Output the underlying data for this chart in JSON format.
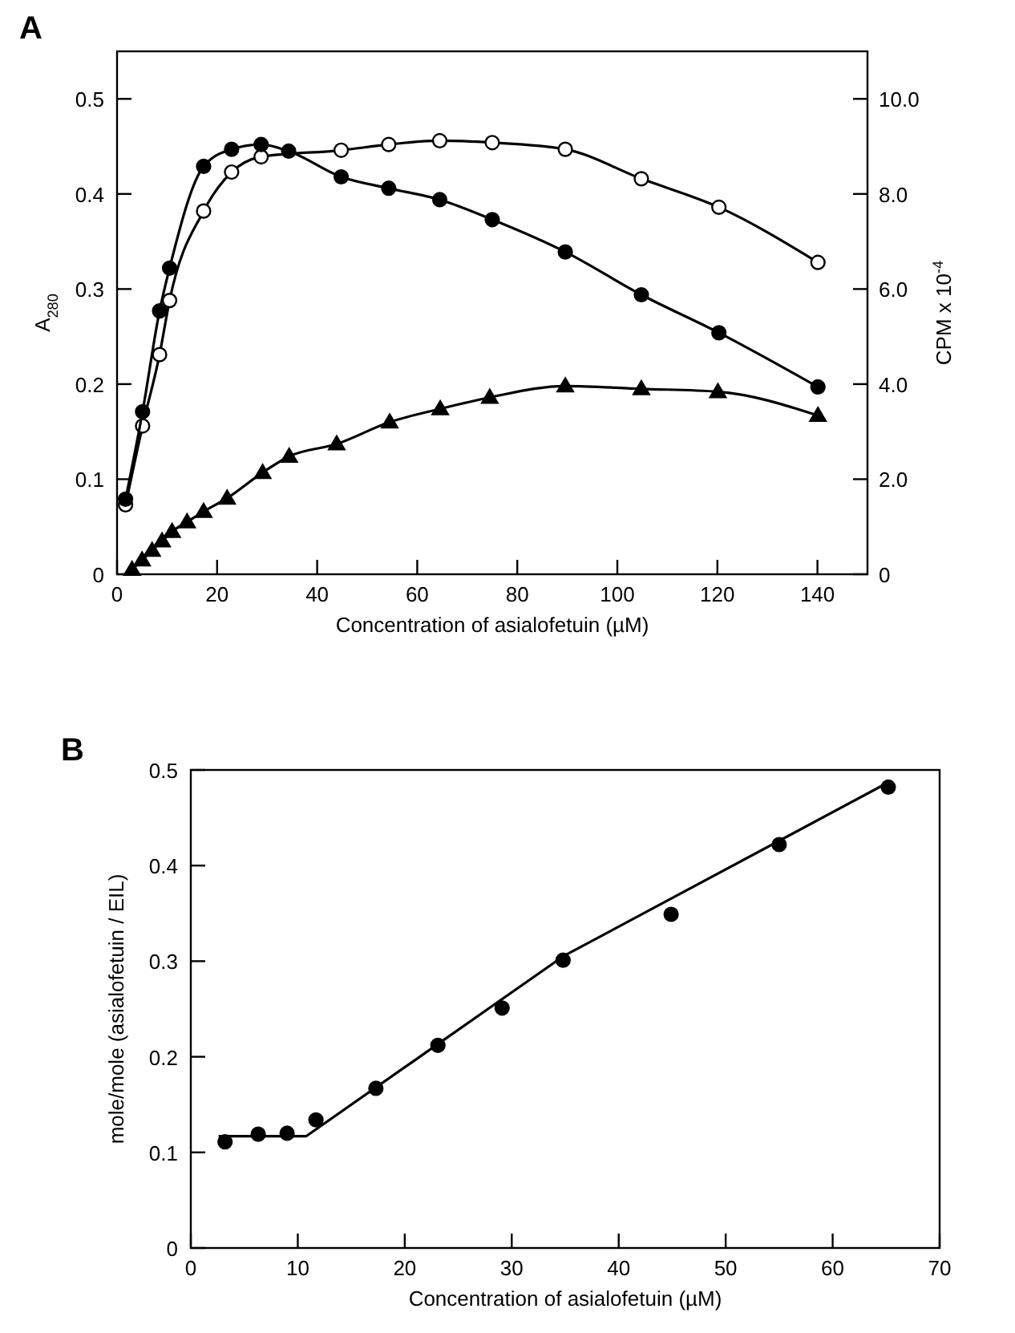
{
  "chart_data": [
    {
      "type": "line",
      "title": "A",
      "xlabel": "Concentration of asialofetuin (µM)",
      "ylabel": "A$_{280}$",
      "y2label": "CPM x 10$^{-4}$",
      "xlim": [
        0,
        150
      ],
      "xticks": [
        0,
        20,
        40,
        60,
        80,
        100,
        120,
        140
      ],
      "ylim": [
        0,
        0.55
      ],
      "yticks": [
        0,
        0.1,
        0.2,
        0.3,
        0.4,
        0.5
      ],
      "y2lim": [
        0,
        11
      ],
      "y2ticks": [
        {
          "value": 0,
          "label": "0"
        },
        {
          "value": 2,
          "label": "2.0"
        },
        {
          "value": 4,
          "label": "4.0"
        },
        {
          "value": 6,
          "label": "6.0"
        },
        {
          "value": 8,
          "label": "8.0"
        },
        {
          "value": 10,
          "label": "10.0"
        }
      ],
      "series": [
        {
          "color": "#000000",
          "marker": "circle",
          "x": [
            1.7,
            5.1,
            8.5,
            10.5,
            17.3,
            22.9,
            28.8,
            34.3,
            44.8,
            54.3,
            64.5,
            75,
            89.6,
            104.8,
            120.3,
            140.1
          ],
          "values": [
            0.079,
            0.171,
            0.277,
            0.322,
            0.429,
            0.447,
            0.452,
            0.445,
            0.418,
            0.406,
            0.394,
            0.373,
            0.339,
            0.294,
            0.254,
            0.197
          ]
        },
        {
          "color": "#ffffff",
          "marker": "circle",
          "x": [
            1.7,
            5.1,
            8.5,
            10.5,
            17.3,
            22.9,
            28.8,
            44.8,
            54.3,
            64.5,
            75,
            89.6,
            104.8,
            120.3,
            140.1
          ],
          "values": [
            0.073,
            0.156,
            0.231,
            0.288,
            0.382,
            0.423,
            0.439,
            0.446,
            0.452,
            0.456,
            0.454,
            0.447,
            0.416,
            0.386,
            0.328
          ]
        },
        {
          "color": "#000000",
          "marker": "triangle",
          "x": [
            3,
            5,
            7,
            9,
            11,
            14,
            17.3,
            22,
            29.1,
            34.4,
            43.9,
            54.5,
            64.6,
            74.5,
            89.6,
            104.8,
            120.1,
            140.1
          ],
          "values": [
            0.005,
            0.015,
            0.025,
            0.035,
            0.045,
            0.055,
            0.066,
            0.08,
            0.107,
            0.124,
            0.137,
            0.16,
            0.174,
            0.186,
            0.198,
            0.195,
            0.192,
            0.167
          ]
        }
      ]
    },
    {
      "type": "scatter",
      "title": "B",
      "xlabel": "Concentration of asialofetuin (µM)",
      "ylabel": "mole/mole (asialofetuin / EIL)",
      "xlim": [
        0,
        70
      ],
      "xticks": [
        0,
        10,
        20,
        30,
        40,
        50,
        60,
        70
      ],
      "ylim": [
        0,
        0.5
      ],
      "yticks": [
        0,
        0.1,
        0.2,
        0.3,
        0.4,
        0.5
      ],
      "series": [
        {
          "color": "#000000",
          "marker": "circle",
          "x": [
            3.2,
            6.3,
            9,
            11.7,
            17.3,
            23.1,
            29.1,
            34.8,
            44.9,
            55,
            65.2
          ],
          "values": [
            0.111,
            0.119,
            0.12,
            0.134,
            0.167,
            0.212,
            0.251,
            0.301,
            0.349,
            0.422,
            0.482
          ]
        },
        {
          "type": "line",
          "color": "#000000",
          "marker": "none",
          "x": [
            2.6,
            10.8,
            34.8,
            65.2
          ],
          "values": [
            0.117,
            0.117,
            0.305,
            0.487
          ]
        }
      ]
    }
  ]
}
